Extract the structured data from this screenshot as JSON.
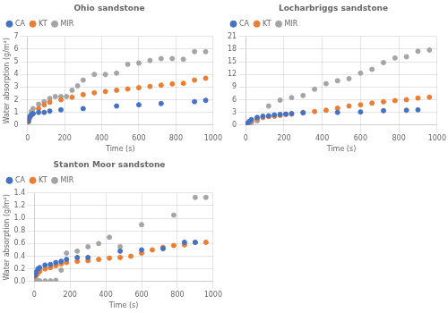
{
  "chart_data": [
    {
      "type": "scatter",
      "title": "Ohio sandstone",
      "xlabel": "Time (s)",
      "ylabel": "Water absorption (g/m²)",
      "series": [
        {
          "name": "CA",
          "color": "#4472C4",
          "x": [
            5,
            10,
            20,
            30,
            60,
            90,
            120,
            180,
            300,
            480,
            600,
            720,
            900,
            960
          ],
          "values": [
            0.3,
            0.6,
            0.8,
            0.9,
            1.0,
            1.0,
            1.1,
            1.2,
            1.3,
            1.5,
            1.6,
            1.7,
            1.85,
            1.95
          ]
        },
        {
          "name": "KT",
          "color": "#ED7D31",
          "x": [
            5,
            10,
            20,
            30,
            60,
            90,
            120,
            180,
            240,
            300,
            360,
            420,
            480,
            540,
            600,
            660,
            720,
            780,
            840,
            900,
            960
          ],
          "values": [
            0.25,
            0.5,
            0.75,
            0.9,
            1.3,
            1.6,
            1.8,
            2.0,
            2.2,
            2.4,
            2.55,
            2.65,
            2.75,
            2.85,
            2.95,
            3.05,
            3.15,
            3.25,
            3.3,
            3.55,
            3.7
          ]
        },
        {
          "name": "MIR",
          "color": "#A5A5A5",
          "x": [
            5,
            10,
            20,
            30,
            60,
            90,
            120,
            150,
            180,
            210,
            240,
            270,
            300,
            360,
            420,
            480,
            540,
            600,
            660,
            720,
            780,
            840,
            900,
            960
          ],
          "values": [
            0.3,
            0.7,
            1.05,
            1.3,
            1.65,
            1.85,
            2.1,
            2.25,
            2.25,
            2.25,
            2.75,
            3.1,
            3.55,
            4.0,
            4.0,
            4.1,
            4.8,
            4.9,
            5.1,
            5.25,
            5.25,
            5.2,
            5.8,
            5.8
          ]
        }
      ],
      "xlim": [
        0,
        1000
      ],
      "xticks": [
        0,
        200,
        400,
        600,
        800,
        1000
      ],
      "ylim": [
        0,
        7
      ],
      "yticks": [
        0,
        1,
        2,
        3,
        4,
        5,
        6,
        7
      ],
      "grid": true,
      "legend": "upper left"
    },
    {
      "type": "scatter",
      "title": "Locharbriggs sandstone",
      "xlabel": "Time (s)",
      "series": [
        {
          "name": "CA",
          "color": "#4472C4",
          "x": [
            5,
            10,
            20,
            30,
            60,
            90,
            120,
            150,
            180,
            210,
            240,
            300,
            480,
            600,
            720,
            840,
            900
          ],
          "values": [
            0.2,
            0.5,
            0.9,
            1.3,
            1.8,
            2.1,
            2.2,
            2.4,
            2.5,
            2.6,
            2.7,
            2.9,
            3.0,
            3.1,
            3.4,
            3.5,
            3.6
          ]
        },
        {
          "name": "KT",
          "color": "#ED7D31",
          "x": [
            5,
            10,
            20,
            30,
            60,
            90,
            120,
            150,
            180,
            210,
            240,
            300,
            360,
            420,
            480,
            540,
            600,
            660,
            720,
            780,
            840,
            900,
            960
          ],
          "values": [
            0.1,
            0.3,
            0.6,
            1.0,
            1.5,
            1.8,
            2.0,
            2.1,
            2.3,
            2.5,
            2.6,
            3.0,
            3.2,
            3.5,
            4.0,
            4.5,
            4.8,
            5.2,
            5.5,
            5.8,
            6.0,
            6.4,
            6.6
          ]
        },
        {
          "name": "MIR",
          "color": "#A5A5A5",
          "x": [
            5,
            10,
            20,
            30,
            60,
            120,
            180,
            240,
            300,
            360,
            420,
            480,
            540,
            600,
            660,
            720,
            780,
            840,
            900,
            960
          ],
          "values": [
            0.1,
            0.2,
            0.3,
            0.5,
            1.0,
            4.5,
            5.9,
            6.5,
            7.0,
            8.5,
            9.8,
            10.5,
            11.0,
            12.3,
            13.2,
            14.8,
            15.9,
            16.2,
            17.5,
            17.8
          ]
        }
      ],
      "xlim": [
        0,
        1000
      ],
      "xticks": [
        0,
        200,
        400,
        600,
        800,
        1000
      ],
      "ylim": [
        0,
        21
      ],
      "yticks": [
        0,
        3,
        6,
        9,
        12,
        15,
        18,
        21
      ],
      "grid": true,
      "legend": "upper left"
    },
    {
      "type": "scatter",
      "title": "Stanton Moor sandstone",
      "xlabel": "Time (s)",
      "ylabel": "Water absorption (g/m²)",
      "series": [
        {
          "name": "CA",
          "color": "#4472C4",
          "x": [
            5,
            10,
            20,
            30,
            60,
            90,
            120,
            150,
            180,
            240,
            300,
            480,
            600,
            720,
            840,
            900
          ],
          "values": [
            0.1,
            0.15,
            0.2,
            0.22,
            0.26,
            0.27,
            0.3,
            0.32,
            0.35,
            0.38,
            0.38,
            0.48,
            0.5,
            0.52,
            0.62,
            0.62
          ]
        },
        {
          "name": "KT",
          "color": "#ED7D31",
          "x": [
            5,
            10,
            20,
            30,
            60,
            90,
            120,
            150,
            180,
            240,
            300,
            360,
            420,
            480,
            540,
            600,
            660,
            720,
            780,
            840,
            900,
            960
          ],
          "values": [
            0.08,
            0.1,
            0.13,
            0.16,
            0.2,
            0.22,
            0.25,
            0.28,
            0.3,
            0.32,
            0.33,
            0.35,
            0.37,
            0.38,
            0.4,
            0.45,
            0.5,
            0.54,
            0.57,
            0.58,
            0.62,
            0.62
          ]
        },
        {
          "name": "MIR",
          "color": "#A5A5A5",
          "x": [
            5,
            10,
            20,
            30,
            60,
            90,
            120,
            150,
            180,
            240,
            300,
            360,
            420,
            480,
            600,
            780,
            900,
            960
          ],
          "values": [
            0.01,
            0.01,
            0.01,
            0.01,
            0.01,
            0.01,
            0.02,
            0.18,
            0.45,
            0.48,
            0.55,
            0.6,
            0.7,
            0.55,
            0.9,
            1.05,
            1.33,
            1.33
          ]
        }
      ],
      "xlim": [
        0,
        1000
      ],
      "xticks": [
        0,
        200,
        400,
        600,
        800,
        1000
      ],
      "ylim": [
        0,
        1.4
      ],
      "yticks": [
        {
          "value": 0,
          "label": "0.0"
        },
        0.2,
        0.4,
        0.6,
        0.8,
        {
          "value": 1,
          "label": "1.0"
        },
        1.2,
        1.4
      ],
      "grid": true,
      "legend": "upper left"
    }
  ]
}
